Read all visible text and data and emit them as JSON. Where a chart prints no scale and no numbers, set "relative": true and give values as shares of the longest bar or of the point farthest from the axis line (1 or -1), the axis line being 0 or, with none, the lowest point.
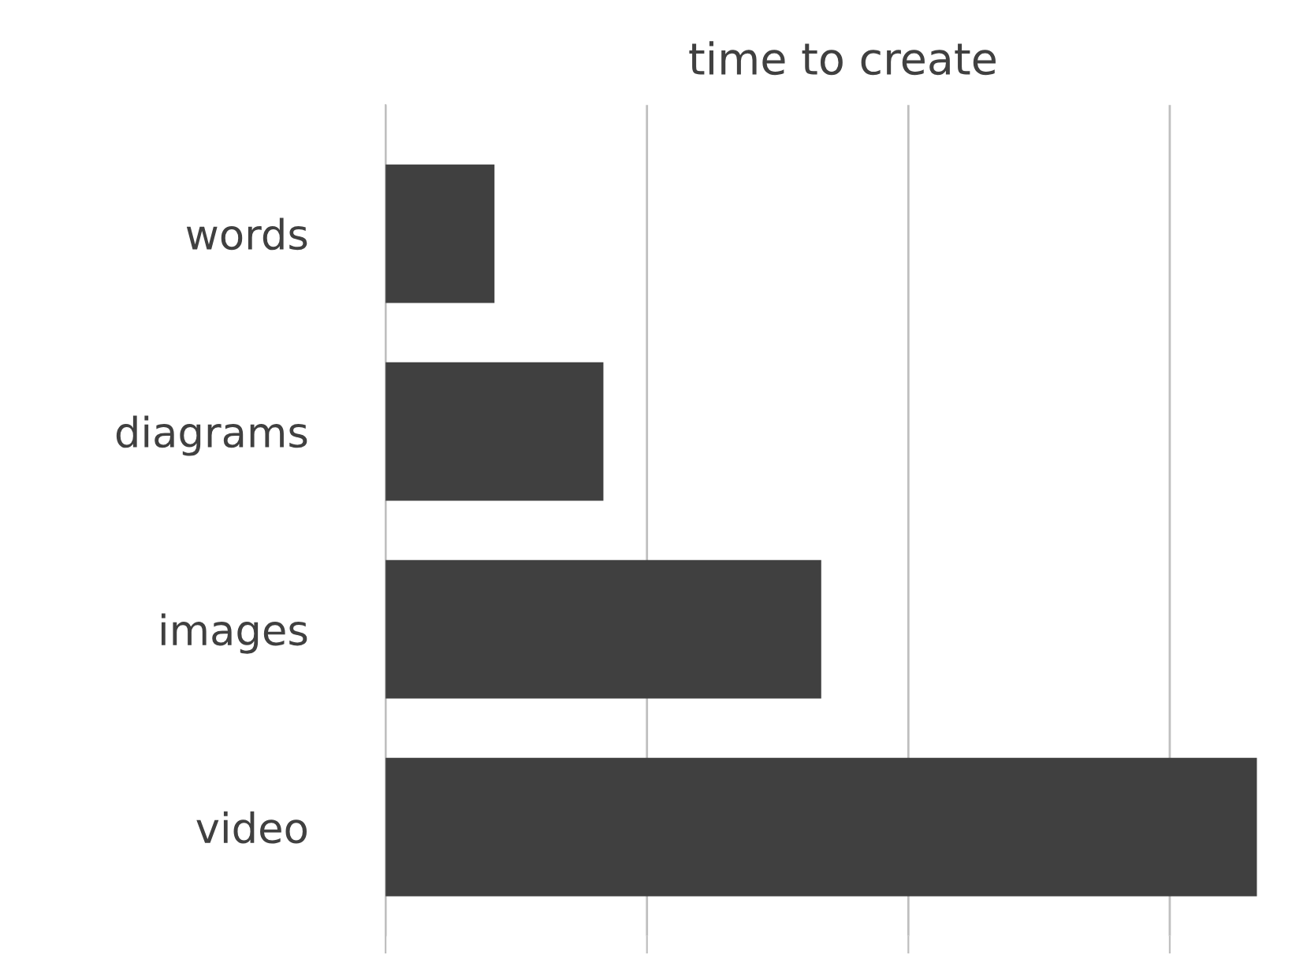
{
  "chart_data": {
    "type": "bar",
    "orientation": "horizontal",
    "relative": true,
    "title": "time to create",
    "categories": [
      "words",
      "diagrams",
      "images",
      "video"
    ],
    "values": [
      0.125,
      0.25,
      0.5,
      1
    ],
    "color": "#404040",
    "grid": "x",
    "legend": false
  }
}
